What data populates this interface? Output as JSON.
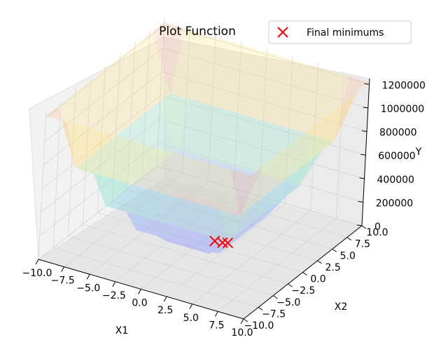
{
  "chart_data": {
    "type": "surface3d",
    "title": "Plot Function",
    "xlabel": "X1",
    "ylabel": "X2",
    "zlabel": "Y",
    "x_ticks": [
      "−10.0",
      "−7.5",
      "−5.0",
      "−2.5",
      "0.0",
      "2.5",
      "5.0",
      "7.5",
      "10.0"
    ],
    "y_ticks": [
      "−10.0",
      "−7.5",
      "−5.0",
      "−2.5",
      "0.0",
      "2.5",
      "5.0",
      "7.5",
      "10.0"
    ],
    "z_ticks": [
      "0",
      "200000",
      "400000",
      "600000",
      "800000",
      "1000000",
      "1200000"
    ],
    "xlim": [
      -10,
      10
    ],
    "ylim": [
      -10,
      10
    ],
    "zlim": [
      0,
      1250000
    ],
    "grid": true,
    "legend_position": "upper-right",
    "series": [
      {
        "name": "Final minimums",
        "type": "scatter3d",
        "marker": "x",
        "color": "#ff0000",
        "points": [
          {
            "x": 0.9,
            "y": 0.9,
            "z": 0
          },
          {
            "x": 1.6,
            "y": 1.0,
            "z": 0
          },
          {
            "x": 2.0,
            "y": 1.2,
            "z": 0
          }
        ]
      }
    ],
    "surface": {
      "colormap": "rainbow",
      "alpha": 0.15,
      "max_value": 1220000
    }
  }
}
